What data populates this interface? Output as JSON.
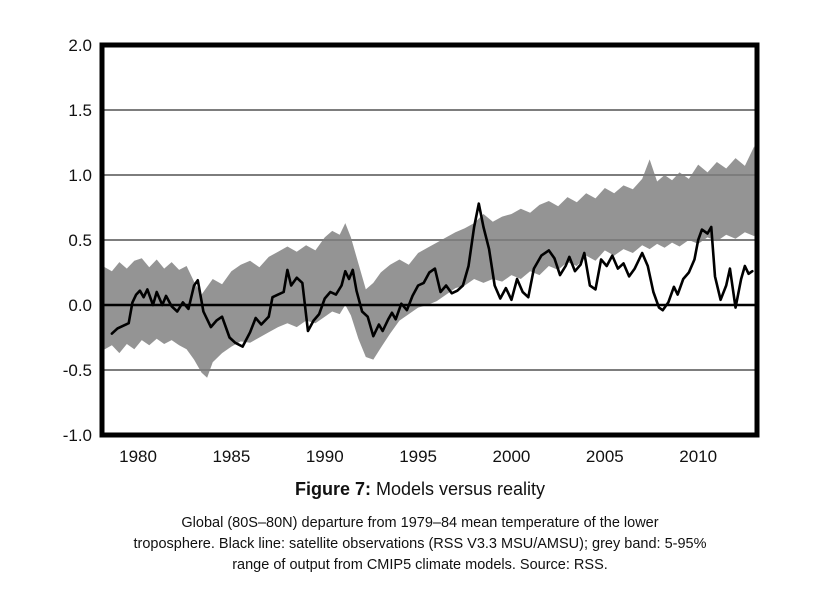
{
  "figure": {
    "title_prefix": "Figure 7:",
    "title_rest": " Models versus reality",
    "caption_lines": [
      "Global (80S–80N) departure from 1979–84 mean temperature of the lower",
      "troposphere. Black line: satellite observations (RSS V3.3 MSU/AMSU); grey band: 5-95%",
      "range of output from CMIP5 climate models. Source: RSS."
    ]
  },
  "chart_data": {
    "type": "line",
    "title": "Models versus reality",
    "xlabel": "",
    "ylabel": "",
    "xlim": [
      1978.07,
      2013.15
    ],
    "ylim": [
      -1.0,
      2.0
    ],
    "grid": true,
    "legend_position": "none",
    "y_ticks": [
      {
        "label": "2.0",
        "value": 2.0
      },
      {
        "label": "1.5",
        "value": 1.5
      },
      {
        "label": "1.0",
        "value": 1.0
      },
      {
        "label": "0.5",
        "value": 0.5
      },
      {
        "label": "0.0",
        "value": 0.0
      },
      {
        "label": "-0.5",
        "value": -0.5
      },
      {
        "label": "-1.0",
        "value": -1.0
      }
    ],
    "x_ticks": [
      {
        "label": "1980",
        "value": 1980
      },
      {
        "label": "1985",
        "value": 1985
      },
      {
        "label": "1990",
        "value": 1990
      },
      {
        "label": "1995",
        "value": 1995
      },
      {
        "label": "2000",
        "value": 2000
      },
      {
        "label": "2005",
        "value": 2005
      },
      {
        "label": "2010",
        "value": 2010
      }
    ],
    "gridline_values": [
      1.5,
      1.0,
      0.5,
      -0.5
    ],
    "zero_line_value": 0.0,
    "colors": {
      "band": "#949494",
      "observations_line": "#000000",
      "gridline": "#7d7d7d",
      "zero_line": "#000000",
      "frame": "#000000",
      "background": "#ffffff"
    },
    "series": [
      {
        "name": "CMIP5 climate models 5-95% range",
        "type": "band",
        "x": [
          1978.1,
          1978.6,
          1979.0,
          1979.4,
          1979.8,
          1980.2,
          1980.6,
          1981.0,
          1981.4,
          1981.8,
          1982.2,
          1982.6,
          1983.0,
          1983.4,
          1983.7,
          1984.0,
          1984.5,
          1985.0,
          1985.5,
          1986.0,
          1986.5,
          1987.0,
          1987.5,
          1988.0,
          1988.5,
          1989.0,
          1989.5,
          1990.0,
          1990.4,
          1990.8,
          1991.1,
          1991.4,
          1991.8,
          1992.2,
          1992.6,
          1993.0,
          1993.5,
          1994.0,
          1994.5,
          1995.0,
          1995.5,
          1996.0,
          1996.5,
          1997.0,
          1997.5,
          1998.0,
          1998.5,
          1999.0,
          1999.5,
          2000.0,
          2000.5,
          2001.0,
          2001.5,
          2002.0,
          2002.5,
          2003.0,
          2003.5,
          2004.0,
          2004.5,
          2005.0,
          2005.5,
          2006.0,
          2006.5,
          2007.0,
          2007.4,
          2007.8,
          2008.2,
          2008.6,
          2009.0,
          2009.5,
          2010.0,
          2010.5,
          2011.0,
          2011.5,
          2012.0,
          2012.5,
          2013.0,
          2013.2
        ],
        "upper": [
          0.3,
          0.26,
          0.33,
          0.28,
          0.34,
          0.36,
          0.29,
          0.35,
          0.28,
          0.33,
          0.27,
          0.3,
          0.18,
          0.08,
          0.14,
          0.2,
          0.16,
          0.26,
          0.31,
          0.34,
          0.29,
          0.37,
          0.41,
          0.45,
          0.41,
          0.46,
          0.42,
          0.52,
          0.57,
          0.54,
          0.63,
          0.52,
          0.32,
          0.12,
          0.17,
          0.25,
          0.31,
          0.35,
          0.31,
          0.4,
          0.44,
          0.48,
          0.52,
          0.56,
          0.59,
          0.63,
          0.7,
          0.64,
          0.68,
          0.7,
          0.74,
          0.71,
          0.77,
          0.8,
          0.76,
          0.83,
          0.79,
          0.86,
          0.82,
          0.9,
          0.86,
          0.92,
          0.89,
          0.97,
          1.12,
          0.95,
          1.0,
          0.96,
          1.02,
          0.97,
          1.08,
          1.02,
          1.1,
          1.05,
          1.13,
          1.07,
          1.22,
          1.1
        ],
        "lower": [
          -0.35,
          -0.31,
          -0.37,
          -0.3,
          -0.34,
          -0.27,
          -0.31,
          -0.26,
          -0.3,
          -0.27,
          -0.31,
          -0.34,
          -0.42,
          -0.52,
          -0.56,
          -0.44,
          -0.37,
          -0.32,
          -0.28,
          -0.29,
          -0.25,
          -0.21,
          -0.17,
          -0.14,
          -0.17,
          -0.12,
          -0.14,
          -0.09,
          -0.05,
          -0.07,
          0.0,
          -0.08,
          -0.26,
          -0.4,
          -0.42,
          -0.33,
          -0.22,
          -0.12,
          -0.07,
          -0.02,
          0.0,
          0.03,
          0.08,
          0.13,
          0.15,
          0.2,
          0.17,
          0.2,
          0.18,
          0.23,
          0.2,
          0.26,
          0.23,
          0.3,
          0.27,
          0.33,
          0.3,
          0.38,
          0.34,
          0.42,
          0.38,
          0.43,
          0.4,
          0.46,
          0.43,
          0.47,
          0.44,
          0.48,
          0.45,
          0.5,
          0.47,
          0.52,
          0.49,
          0.54,
          0.51,
          0.56,
          0.53,
          0.58
        ]
      },
      {
        "name": "RSS V3.3 MSU/AMSU satellite observations",
        "type": "line",
        "x": [
          1978.6,
          1978.9,
          1979.2,
          1979.5,
          1979.7,
          1979.9,
          1980.1,
          1980.3,
          1980.5,
          1980.8,
          1981.0,
          1981.3,
          1981.5,
          1981.8,
          1982.1,
          1982.4,
          1982.7,
          1983.0,
          1983.2,
          1983.5,
          1983.9,
          1984.2,
          1984.5,
          1984.9,
          1985.2,
          1985.6,
          1986.0,
          1986.3,
          1986.6,
          1987.0,
          1987.2,
          1987.5,
          1987.8,
          1988.0,
          1988.2,
          1988.5,
          1988.8,
          1989.1,
          1989.4,
          1989.7,
          1990.0,
          1990.3,
          1990.6,
          1990.9,
          1991.1,
          1991.3,
          1991.5,
          1991.7,
          1992.0,
          1992.3,
          1992.6,
          1992.9,
          1993.1,
          1993.4,
          1993.6,
          1993.8,
          1994.1,
          1994.4,
          1994.7,
          1995.0,
          1995.3,
          1995.6,
          1995.9,
          1996.2,
          1996.5,
          1996.8,
          1997.1,
          1997.4,
          1997.7,
          1998.0,
          1998.25,
          1998.5,
          1998.8,
          1999.1,
          1999.4,
          1999.7,
          2000.0,
          2000.3,
          2000.6,
          2000.9,
          2001.2,
          2001.6,
          2002.0,
          2002.3,
          2002.6,
          2002.9,
          2003.1,
          2003.4,
          2003.7,
          2003.9,
          2004.2,
          2004.5,
          2004.8,
          2005.1,
          2005.4,
          2005.7,
          2006.0,
          2006.3,
          2006.6,
          2007.0,
          2007.3,
          2007.6,
          2007.9,
          2008.1,
          2008.4,
          2008.7,
          2008.9,
          2009.2,
          2009.5,
          2009.8,
          2010.0,
          2010.2,
          2010.5,
          2010.7,
          2010.9,
          2011.2,
          2011.5,
          2011.7,
          2012.0,
          2012.3,
          2012.5,
          2012.7,
          2012.9
        ],
        "y": [
          -0.22,
          -0.18,
          -0.16,
          -0.14,
          0.02,
          0.08,
          0.11,
          0.06,
          0.12,
          0.0,
          0.1,
          0.0,
          0.07,
          -0.01,
          -0.05,
          0.02,
          -0.03,
          0.15,
          0.19,
          -0.05,
          -0.17,
          -0.12,
          -0.09,
          -0.25,
          -0.29,
          -0.32,
          -0.21,
          -0.1,
          -0.15,
          -0.09,
          0.06,
          0.08,
          0.1,
          0.27,
          0.15,
          0.21,
          0.17,
          -0.2,
          -0.12,
          -0.07,
          0.05,
          0.1,
          0.08,
          0.15,
          0.26,
          0.2,
          0.27,
          0.11,
          -0.05,
          -0.09,
          -0.24,
          -0.15,
          -0.2,
          -0.11,
          -0.06,
          -0.11,
          0.01,
          -0.04,
          0.07,
          0.15,
          0.17,
          0.25,
          0.28,
          0.1,
          0.15,
          0.09,
          0.11,
          0.15,
          0.3,
          0.6,
          0.78,
          0.6,
          0.43,
          0.15,
          0.05,
          0.13,
          0.04,
          0.2,
          0.1,
          0.06,
          0.28,
          0.38,
          0.42,
          0.36,
          0.23,
          0.3,
          0.37,
          0.26,
          0.31,
          0.4,
          0.15,
          0.12,
          0.35,
          0.3,
          0.38,
          0.28,
          0.32,
          0.22,
          0.28,
          0.4,
          0.3,
          0.1,
          -0.02,
          -0.04,
          0.02,
          0.14,
          0.08,
          0.2,
          0.25,
          0.35,
          0.5,
          0.58,
          0.55,
          0.6,
          0.22,
          0.04,
          0.15,
          0.28,
          -0.02,
          0.2,
          0.3,
          0.24,
          0.26
        ]
      }
    ]
  }
}
